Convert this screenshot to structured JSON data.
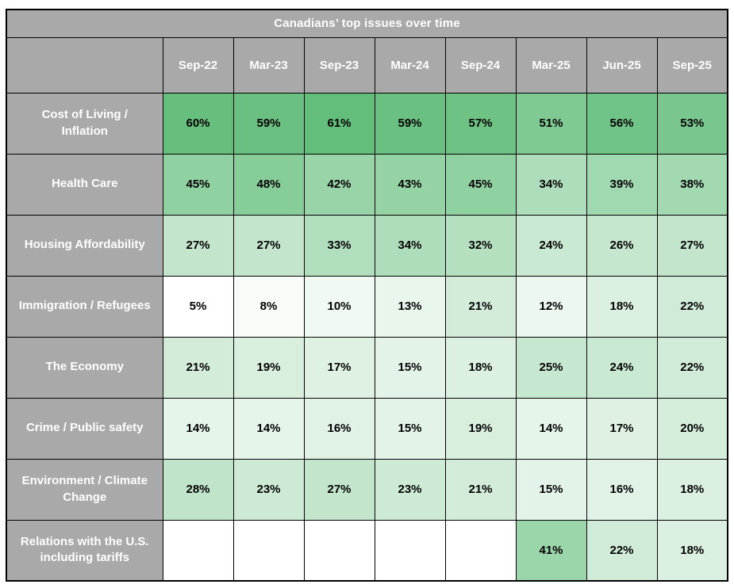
{
  "chart_data": {
    "type": "heatmap",
    "title": "Canadians’ top issues over time",
    "columns": [
      "Sep-22",
      "Mar-23",
      "Sep-23",
      "Mar-24",
      "Sep-24",
      "Mar-25",
      "Jun-25",
      "Sep-25"
    ],
    "rows": [
      {
        "label": "Cost of Living / Inflation",
        "values": [
          60,
          59,
          61,
          59,
          57,
          51,
          56,
          53
        ]
      },
      {
        "label": "Health Care",
        "values": [
          45,
          48,
          42,
          43,
          45,
          34,
          39,
          38
        ]
      },
      {
        "label": "Housing Affordability",
        "values": [
          27,
          27,
          33,
          34,
          32,
          24,
          26,
          27
        ]
      },
      {
        "label": "Immigration / Refugees",
        "values": [
          5,
          8,
          10,
          13,
          21,
          12,
          18,
          22
        ]
      },
      {
        "label": "The Economy",
        "values": [
          21,
          19,
          17,
          15,
          18,
          25,
          24,
          22
        ]
      },
      {
        "label": "Crime / Public safety",
        "values": [
          14,
          14,
          16,
          15,
          19,
          14,
          17,
          20
        ]
      },
      {
        "label": "Environment / Climate Change",
        "values": [
          28,
          23,
          27,
          23,
          21,
          15,
          16,
          18
        ]
      },
      {
        "label": "Relations with the U.S. including tariffs",
        "values": [
          null,
          null,
          null,
          null,
          null,
          41,
          22,
          18
        ]
      }
    ],
    "value_suffix": "%",
    "color_scale": {
      "min_value": 5,
      "max_value": 61,
      "min_color": "#FFFFFF",
      "max_color": "#63BE7B",
      "empty_color": "#FFFFFF"
    },
    "layout": {
      "legend": "none",
      "grid": "on"
    }
  },
  "colors": {
    "header_bg": "#A9A9A9",
    "header_text": "#FFFFFF",
    "value_text": "#000000",
    "border": "#000000",
    "page_bg": "#FFFFFF"
  }
}
